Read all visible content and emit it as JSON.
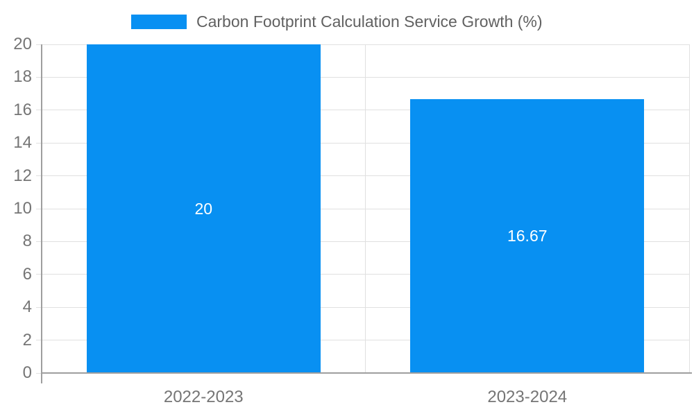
{
  "chart_data": {
    "type": "bar",
    "title": "Carbon Footprint Calculation Service Growth (%)",
    "categories": [
      "2022-2023",
      "2023-2024"
    ],
    "values": [
      20,
      16.67
    ],
    "value_labels": [
      "20",
      "16.67"
    ],
    "xlabel": "",
    "ylabel": "",
    "ylim": [
      0,
      20
    ],
    "ytick_step": 2,
    "yticks": [
      0,
      2,
      4,
      6,
      8,
      10,
      12,
      14,
      16,
      18,
      20
    ],
    "grid": true,
    "legend_position": "top"
  },
  "colors": {
    "bar": "#0890f2",
    "grid": "#e0e0e0",
    "axis": "#9e9e9e",
    "tick_label": "#757575",
    "title_text": "#616161",
    "bar_label": "#ffffff",
    "background": "#ffffff"
  }
}
